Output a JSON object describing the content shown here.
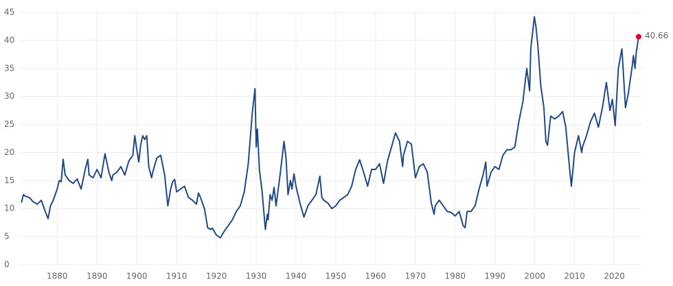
{
  "chart_data": {
    "type": "line",
    "x": [
      1871,
      1871.5,
      1872,
      1873,
      1874,
      1875,
      1876,
      1877,
      1877.7,
      1878.3,
      1879,
      1880,
      1880.5,
      1881,
      1881.5,
      1882,
      1883,
      1884,
      1885,
      1886,
      1887,
      1887.7,
      1888,
      1889,
      1890,
      1891,
      1892,
      1893,
      1893.7,
      1894,
      1895,
      1896,
      1897,
      1898,
      1899,
      1899.5,
      1900,
      1900.5,
      1901,
      1901.5,
      1902,
      1902.5,
      1903,
      1903.7,
      1904,
      1905,
      1906,
      1907,
      1907.8,
      1908.5,
      1909,
      1909.5,
      1910,
      1911,
      1912,
      1913,
      1914,
      1915,
      1915.5,
      1916,
      1917,
      1917.8,
      1918.5,
      1919,
      1920,
      1921,
      1922,
      1923,
      1924,
      1925,
      1926,
      1927,
      1928,
      1929,
      1929.7,
      1930,
      1930.3,
      1930.8,
      1931.5,
      1932.3,
      1932.8,
      1933,
      1933.5,
      1934,
      1934.5,
      1935,
      1936,
      1937,
      1937.5,
      1938,
      1938.6,
      1939,
      1939.5,
      1940,
      1941,
      1942,
      1943,
      1944,
      1945,
      1946,
      1946.5,
      1947,
      1948,
      1949,
      1950,
      1951,
      1952,
      1953,
      1954,
      1955,
      1956,
      1957,
      1958,
      1959,
      1960,
      1961,
      1962,
      1963,
      1964,
      1965,
      1966,
      1966.8,
      1967,
      1968,
      1969,
      1970,
      1970.5,
      1971,
      1972,
      1973,
      1974,
      1974.7,
      1975,
      1976,
      1977,
      1978,
      1979,
      1980,
      1981,
      1982,
      1982.5,
      1983,
      1984,
      1985,
      1986,
      1987,
      1987.7,
      1988,
      1989,
      1990,
      1991,
      1992,
      1993,
      1994,
      1995,
      1996,
      1997,
      1998,
      1998.7,
      1999,
      1999.9,
      2000.3,
      2000.8,
      2001.5,
      2002.3,
      2002.8,
      2003.2,
      2004,
      2005,
      2006,
      2007,
      2007.8,
      2008.5,
      2009.2,
      2010,
      2011,
      2011.8,
      2012,
      2013,
      2014,
      2015,
      2016,
      2017,
      2018,
      2018.9,
      2019.5,
      2020.2,
      2021,
      2021.9,
      2022.8,
      2023.5,
      2024.5,
      2024.8,
      2025.2,
      2025.5,
      2026.1
    ],
    "values": [
      11.1,
      12.5,
      12.2,
      12.0,
      11.2,
      10.8,
      11.5,
      9.5,
      8.2,
      10.5,
      11.5,
      13.5,
      15.0,
      14.8,
      18.8,
      16.0,
      15.0,
      14.5,
      15.3,
      13.5,
      16.9,
      18.8,
      16.0,
      15.5,
      17.0,
      15.5,
      19.8,
      16.5,
      15.0,
      16.0,
      16.5,
      17.5,
      16.0,
      18.5,
      19.5,
      23.0,
      20.5,
      18.3,
      21.5,
      23.0,
      22.3,
      23.0,
      17.5,
      15.5,
      16.5,
      19.0,
      19.5,
      16.0,
      10.5,
      13.5,
      14.8,
      15.2,
      13.0,
      13.5,
      14.0,
      12.0,
      11.5,
      10.8,
      12.8,
      12.0,
      10.0,
      6.6,
      6.3,
      6.5,
      5.3,
      4.8,
      6.0,
      7.0,
      8.0,
      9.5,
      10.5,
      13.0,
      18.0,
      27.0,
      31.4,
      21.0,
      24.2,
      17.0,
      13.0,
      6.3,
      9.0,
      8.0,
      12.5,
      11.5,
      13.8,
      10.5,
      16.0,
      22.0,
      19.0,
      12.5,
      15.0,
      13.5,
      16.2,
      14.0,
      11.0,
      8.5,
      10.5,
      11.5,
      12.5,
      15.8,
      12.0,
      11.5,
      11.0,
      10.0,
      10.5,
      11.5,
      12.0,
      12.5,
      14.0,
      17.0,
      18.7,
      16.5,
      14.0,
      17.0,
      17.0,
      18.0,
      14.5,
      18.5,
      21.0,
      23.5,
      22.0,
      17.5,
      19.5,
      22.0,
      21.5,
      15.5,
      16.5,
      17.5,
      18.0,
      16.5,
      11.0,
      9.0,
      10.5,
      11.5,
      10.5,
      9.5,
      9.3,
      8.7,
      9.5,
      7.0,
      6.6,
      9.5,
      9.5,
      10.5,
      13.5,
      16.0,
      18.3,
      14.0,
      16.5,
      17.5,
      17.0,
      19.5,
      20.5,
      20.5,
      21.0,
      25.5,
      29.0,
      35.0,
      31.0,
      38.5,
      44.2,
      42.5,
      39.0,
      32.0,
      28.0,
      22.0,
      21.3,
      26.5,
      26.0,
      26.5,
      27.3,
      24.5,
      19.0,
      14.0,
      20.0,
      23.0,
      20.0,
      21.0,
      23.0,
      25.5,
      27.0,
      24.5,
      28.0,
      32.5,
      27.5,
      29.5,
      24.8,
      35.0,
      38.5,
      28.0,
      30.5,
      35.5,
      37.3,
      35.0,
      37.8,
      40.66
    ],
    "color": "#22497e",
    "highlight_color": "#e0002a",
    "xlim": [
      1870.8,
      2026.8
    ],
    "ylim": [
      0,
      45
    ],
    "xticks": [
      1880,
      1890,
      1900,
      1910,
      1920,
      1930,
      1940,
      1950,
      1960,
      1970,
      1980,
      1990,
      2000,
      2010,
      2020
    ],
    "yticks": [
      0,
      5,
      10,
      15,
      20,
      25,
      30,
      35,
      40,
      45
    ],
    "grid": true
  }
}
